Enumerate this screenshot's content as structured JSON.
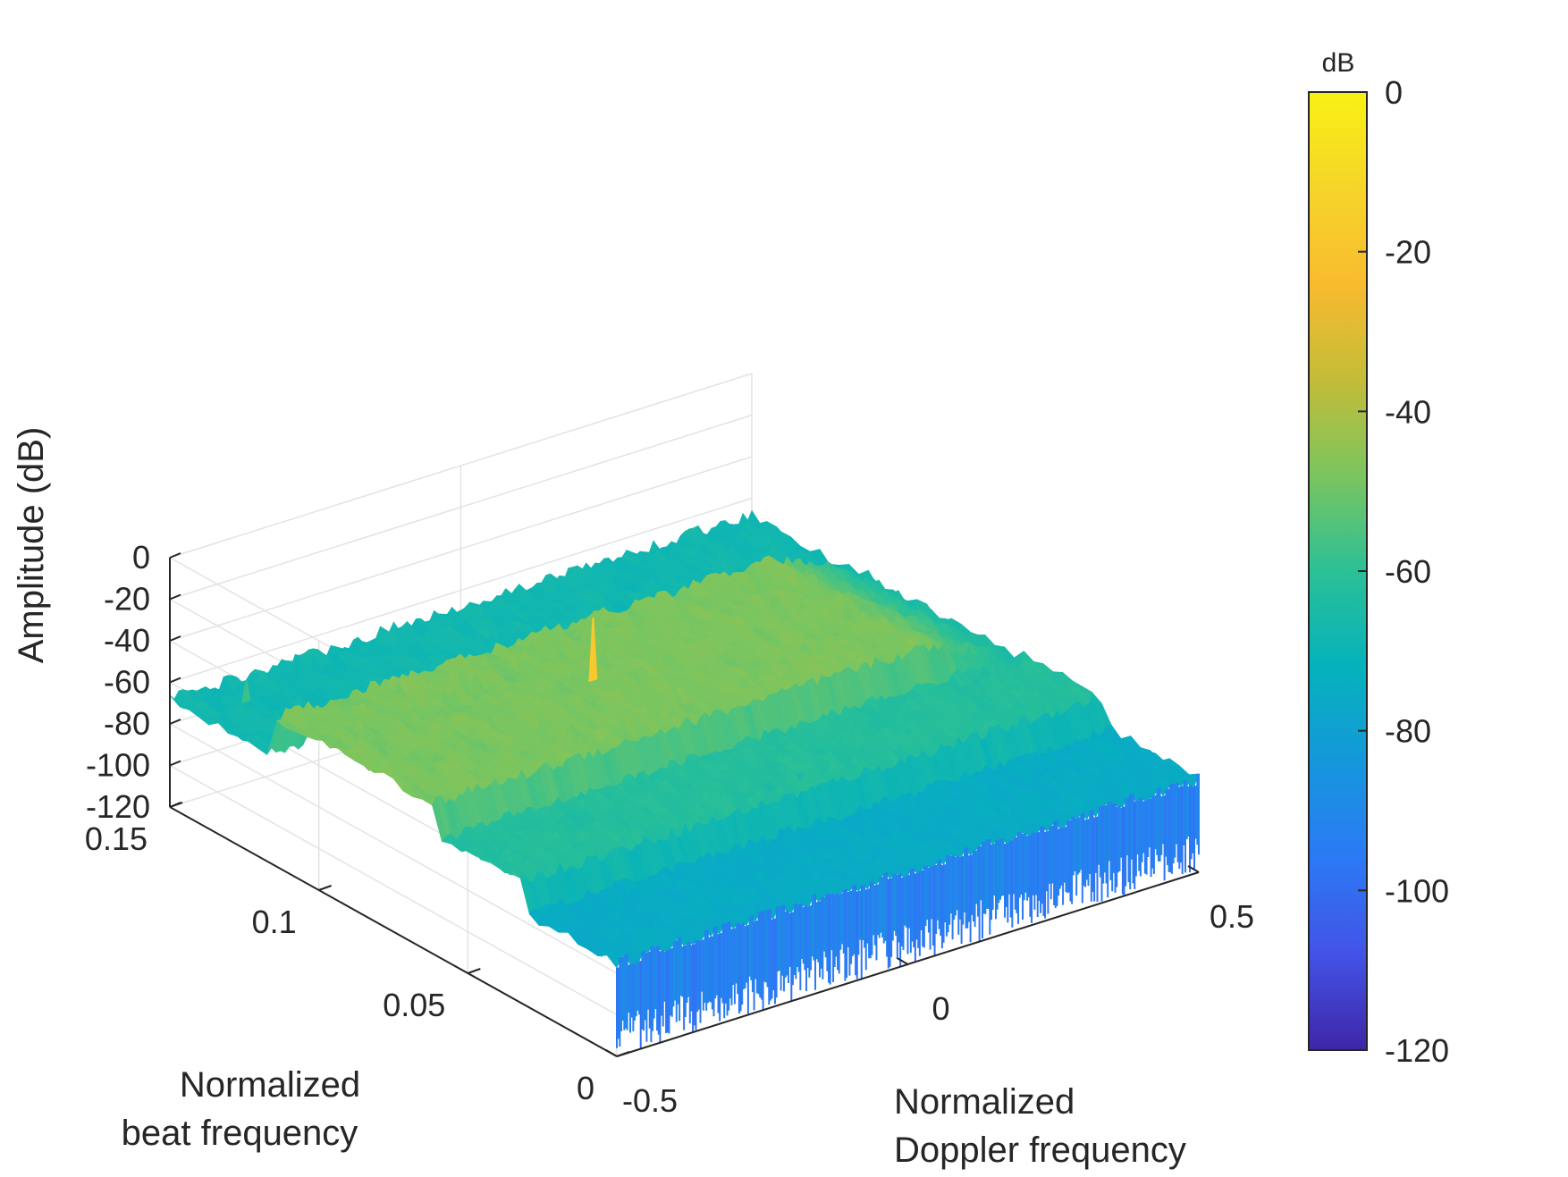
{
  "chart_data": {
    "type": "surface3d",
    "title": "",
    "xlabel": [
      "Normalized",
      "Doppler frequency"
    ],
    "ylabel": [
      "Normalized",
      "beat frequency"
    ],
    "zlabel": "Amplitude (dB)",
    "xlim": [
      -0.5,
      0.5
    ],
    "ylim": [
      0,
      0.15
    ],
    "zlim": [
      -120,
      0
    ],
    "x_ticks": [
      -0.5,
      0,
      0.5
    ],
    "x_tick_labels": [
      "-0.5",
      "0",
      "0.5"
    ],
    "y_ticks": [
      0,
      0.05,
      0.1,
      0.15
    ],
    "y_tick_labels": [
      "0",
      "0.05",
      "0.1",
      "0.15"
    ],
    "z_ticks": [
      0,
      -20,
      -40,
      -60,
      -80,
      -100,
      -120
    ],
    "z_tick_labels": [
      "0",
      "-20",
      "-40",
      "-60",
      "-80",
      "-100",
      "-120"
    ],
    "noise_floor_db": -105,
    "plateaus": [
      {
        "beat_from": 0.0,
        "beat_to": 0.03,
        "level_db": -75
      },
      {
        "beat_from": 0.03,
        "beat_to": 0.06,
        "level_db": -62
      },
      {
        "beat_from": 0.06,
        "beat_to": 0.115,
        "level_db": -48
      },
      {
        "beat_from": 0.115,
        "beat_to": 0.15,
        "level_db": -68
      }
    ],
    "peaks": [
      {
        "doppler": -0.08,
        "beat": 0.09,
        "amplitude_db": -18
      },
      {
        "doppler": -0.42,
        "beat": 0.14,
        "amplitude_db": -58
      },
      {
        "doppler": 0.02,
        "beat": 0.04,
        "amplitude_db": -65
      }
    ],
    "colorbar": {
      "title": "dB",
      "range": [
        -120,
        0
      ],
      "ticks": [
        0,
        -20,
        -40,
        -60,
        -80,
        -100,
        -120
      ],
      "tick_labels": [
        "0",
        "-20",
        "-40",
        "-60",
        "-80",
        "-100",
        "-120"
      ],
      "colormap": "parula",
      "colors": [
        "#3e26a8",
        "#4353e6",
        "#2c79f6",
        "#1597dc",
        "#05b2bc",
        "#2bc096",
        "#7bc55f",
        "#c4bc38",
        "#f9bb2e",
        "#f6d52a",
        "#f8f113"
      ]
    }
  }
}
